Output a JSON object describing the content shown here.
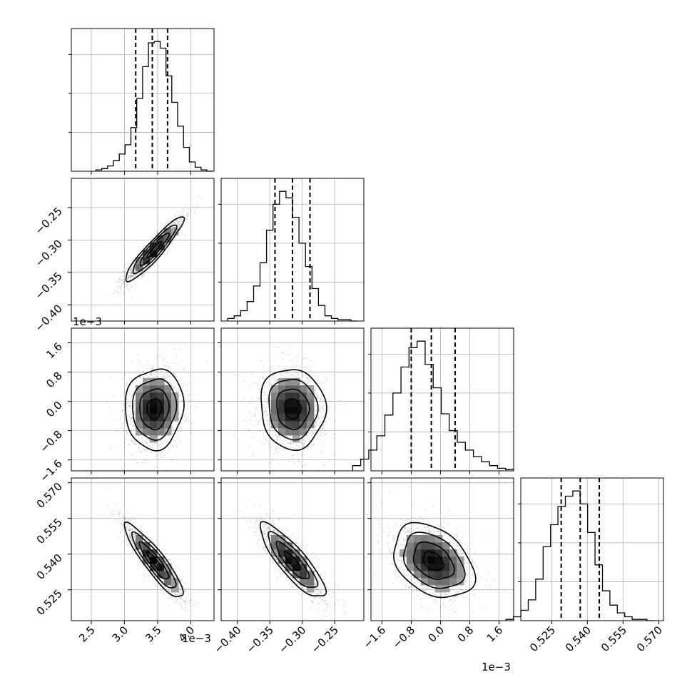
{
  "chart_data": {
    "type": "corner",
    "grid": true,
    "parameters": [
      {
        "index": 0,
        "range": [
          2.2,
          4.35
        ],
        "ticks": [
          2.5,
          3.0,
          3.5,
          4.0
        ],
        "tick_labels": [
          "2.5",
          "3.0",
          "3.5",
          "4.0"
        ],
        "offset_text": "1e−3",
        "mean": 3.45,
        "std": 0.22,
        "quantiles": [
          3.17,
          3.42,
          3.65
        ]
      },
      {
        "index": 1,
        "range": [
          -0.425,
          -0.205
        ],
        "ticks": [
          -0.4,
          -0.35,
          -0.3,
          -0.25
        ],
        "tick_labels": [
          "−0.40",
          "−0.35",
          "−0.30",
          "−0.25"
        ],
        "offset_text": "",
        "mean": -0.315,
        "std": 0.025,
        "quantiles": [
          -0.342,
          -0.315,
          -0.288
        ]
      },
      {
        "index": 2,
        "range": [
          -1.9,
          2.0
        ],
        "ticks": [
          -1.6,
          -0.8,
          0.0,
          0.8,
          1.6
        ],
        "tick_labels": [
          "−1.6",
          "−0.8",
          "0.0",
          "0.8",
          "1.6"
        ],
        "offset_text": "1e−3",
        "mean": -0.2,
        "std": 0.55,
        "quantiles": [
          -0.8,
          -0.25,
          0.4
        ]
      },
      {
        "index": 3,
        "range": [
          0.512,
          0.572
        ],
        "ticks": [
          0.525,
          0.54,
          0.555,
          0.57
        ],
        "tick_labels": [
          "0.525",
          "0.540",
          "0.555",
          "0.570"
        ],
        "offset_text": "",
        "mean": 0.537,
        "std": 0.0078,
        "quantiles": [
          0.529,
          0.537,
          0.545
        ]
      }
    ],
    "correlations": [
      {
        "pair": [
          0,
          1
        ],
        "rho": 0.93
      },
      {
        "pair": [
          0,
          2
        ],
        "rho": 0.05
      },
      {
        "pair": [
          1,
          2
        ],
        "rho": -0.05
      },
      {
        "pair": [
          0,
          3
        ],
        "rho": -0.9
      },
      {
        "pair": [
          1,
          3
        ],
        "rho": -0.85
      },
      {
        "pair": [
          2,
          3
        ],
        "rho": -0.35
      }
    ],
    "histograms": [
      {
        "param": 0,
        "counts": [
          1,
          2,
          4,
          8,
          13,
          20,
          33,
          55,
          79,
          97,
          98,
          93,
          72,
          52,
          34,
          18,
          7,
          3,
          1,
          0
        ]
      },
      {
        "param": 1,
        "counts": [
          2,
          4,
          8,
          15,
          27,
          45,
          70,
          90,
          100,
          95,
          80,
          60,
          42,
          25,
          12,
          4,
          2,
          1,
          1,
          0
        ]
      },
      {
        "param": 2,
        "counts": [
          4,
          9,
          16,
          27,
          43,
          60,
          80,
          95,
          100,
          82,
          64,
          44,
          31,
          22,
          16,
          11,
          7,
          4,
          2,
          1
        ]
      },
      {
        "param": 3,
        "counts": [
          1,
          3,
          8,
          16,
          32,
          57,
          74,
          88,
          96,
          100,
          90,
          68,
          43,
          23,
          12,
          6,
          3,
          1,
          1,
          0
        ]
      }
    ]
  }
}
